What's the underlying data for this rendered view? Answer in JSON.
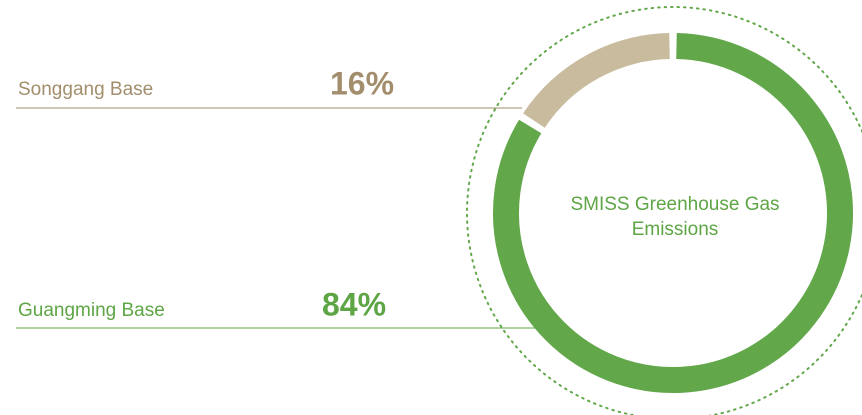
{
  "chart_data": {
    "type": "pie",
    "donut": true,
    "title": "SMISS Greenhouse Gas Emissions",
    "categories": [
      "Songgang Base",
      "Guangming Base"
    ],
    "values": [
      16,
      84
    ],
    "value_labels": [
      "16%",
      "84%"
    ],
    "colors": [
      "#c9bb9e",
      "#62a84b"
    ],
    "label_colors": [
      "#a28e6c",
      "#5ea545"
    ]
  }
}
